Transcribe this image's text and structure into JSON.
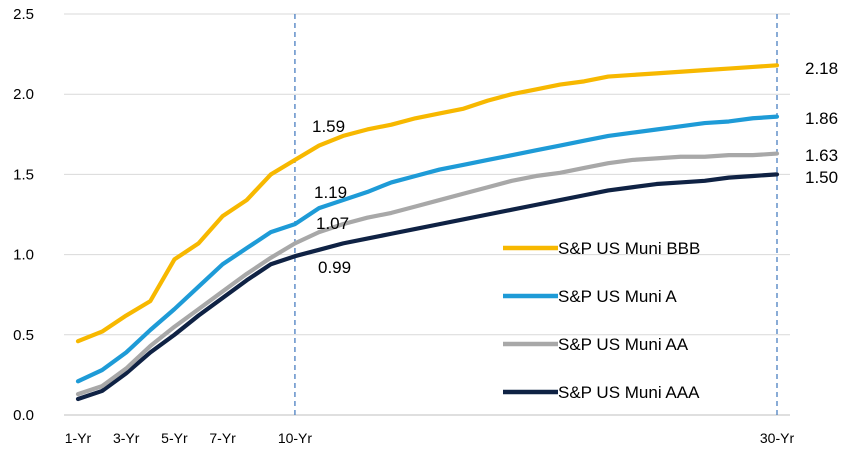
{
  "chart_data": {
    "type": "line",
    "title": "",
    "xlabel": "",
    "ylabel": "",
    "x": [
      1,
      2,
      3,
      4,
      5,
      6,
      7,
      8,
      9,
      10,
      11,
      12,
      13,
      14,
      15,
      16,
      17,
      18,
      19,
      20,
      21,
      22,
      23,
      24,
      25,
      26,
      27,
      28,
      29,
      30
    ],
    "xtick_labels": [
      {
        "x": 1,
        "label": "1-Yr"
      },
      {
        "x": 3,
        "label": "3-Yr"
      },
      {
        "x": 5,
        "label": "5-Yr"
      },
      {
        "x": 7,
        "label": "7-Yr"
      },
      {
        "x": 10,
        "label": "10-Yr"
      },
      {
        "x": 30,
        "label": "30-Yr"
      }
    ],
    "ylim": [
      0,
      2.5
    ],
    "yticks": [
      "0.0",
      "0.5",
      "1.0",
      "1.5",
      "2.0",
      "2.5"
    ],
    "grid": "horizontal",
    "reference_lines_x": [
      10,
      30
    ],
    "legend_position": "right-center",
    "series": [
      {
        "name": "S&P US Muni AAA",
        "color": "#0f2244",
        "values": [
          0.1,
          0.15,
          0.26,
          0.39,
          0.5,
          0.62,
          0.73,
          0.84,
          0.94,
          0.99,
          1.03,
          1.07,
          1.1,
          1.13,
          1.16,
          1.19,
          1.22,
          1.25,
          1.28,
          1.31,
          1.34,
          1.37,
          1.4,
          1.42,
          1.44,
          1.45,
          1.46,
          1.48,
          1.49,
          1.5
        ]
      },
      {
        "name": "S&P US Muni AA",
        "color": "#a8a8a8",
        "values": [
          0.13,
          0.18,
          0.29,
          0.43,
          0.55,
          0.66,
          0.77,
          0.88,
          0.98,
          1.07,
          1.14,
          1.19,
          1.23,
          1.26,
          1.3,
          1.34,
          1.38,
          1.42,
          1.46,
          1.49,
          1.51,
          1.54,
          1.57,
          1.59,
          1.6,
          1.61,
          1.61,
          1.62,
          1.62,
          1.63
        ]
      },
      {
        "name": "S&P US Muni A",
        "color": "#1e9bd7",
        "values": [
          0.21,
          0.28,
          0.39,
          0.53,
          0.66,
          0.8,
          0.94,
          1.04,
          1.14,
          1.19,
          1.29,
          1.34,
          1.39,
          1.45,
          1.49,
          1.53,
          1.56,
          1.59,
          1.62,
          1.65,
          1.68,
          1.71,
          1.74,
          1.76,
          1.78,
          1.8,
          1.82,
          1.83,
          1.85,
          1.86
        ]
      },
      {
        "name": "S&P US Muni BBB",
        "color": "#f7b800",
        "values": [
          0.46,
          0.52,
          0.62,
          0.71,
          0.97,
          1.07,
          1.24,
          1.34,
          1.5,
          1.59,
          1.68,
          1.74,
          1.78,
          1.81,
          1.85,
          1.88,
          1.91,
          1.96,
          2.0,
          2.03,
          2.06,
          2.08,
          2.11,
          2.12,
          2.13,
          2.14,
          2.15,
          2.16,
          2.17,
          2.18
        ]
      }
    ],
    "data_labels": [
      {
        "series": "S&P US Muni BBB",
        "x": 10,
        "text": "1.59"
      },
      {
        "series": "S&P US Muni A",
        "x": 10,
        "text": "1.19"
      },
      {
        "series": "S&P US Muni AA",
        "x": 10,
        "text": "1.07"
      },
      {
        "series": "S&P US Muni AAA",
        "x": 10,
        "text": "0.99"
      },
      {
        "series": "S&P US Muni BBB",
        "x": 30,
        "text": "2.18"
      },
      {
        "series": "S&P US Muni A",
        "x": 30,
        "text": "1.86"
      },
      {
        "series": "S&P US Muni AA",
        "x": 30,
        "text": "1.63"
      },
      {
        "series": "S&P US Muni AAA",
        "x": 30,
        "text": "1.50"
      }
    ]
  }
}
